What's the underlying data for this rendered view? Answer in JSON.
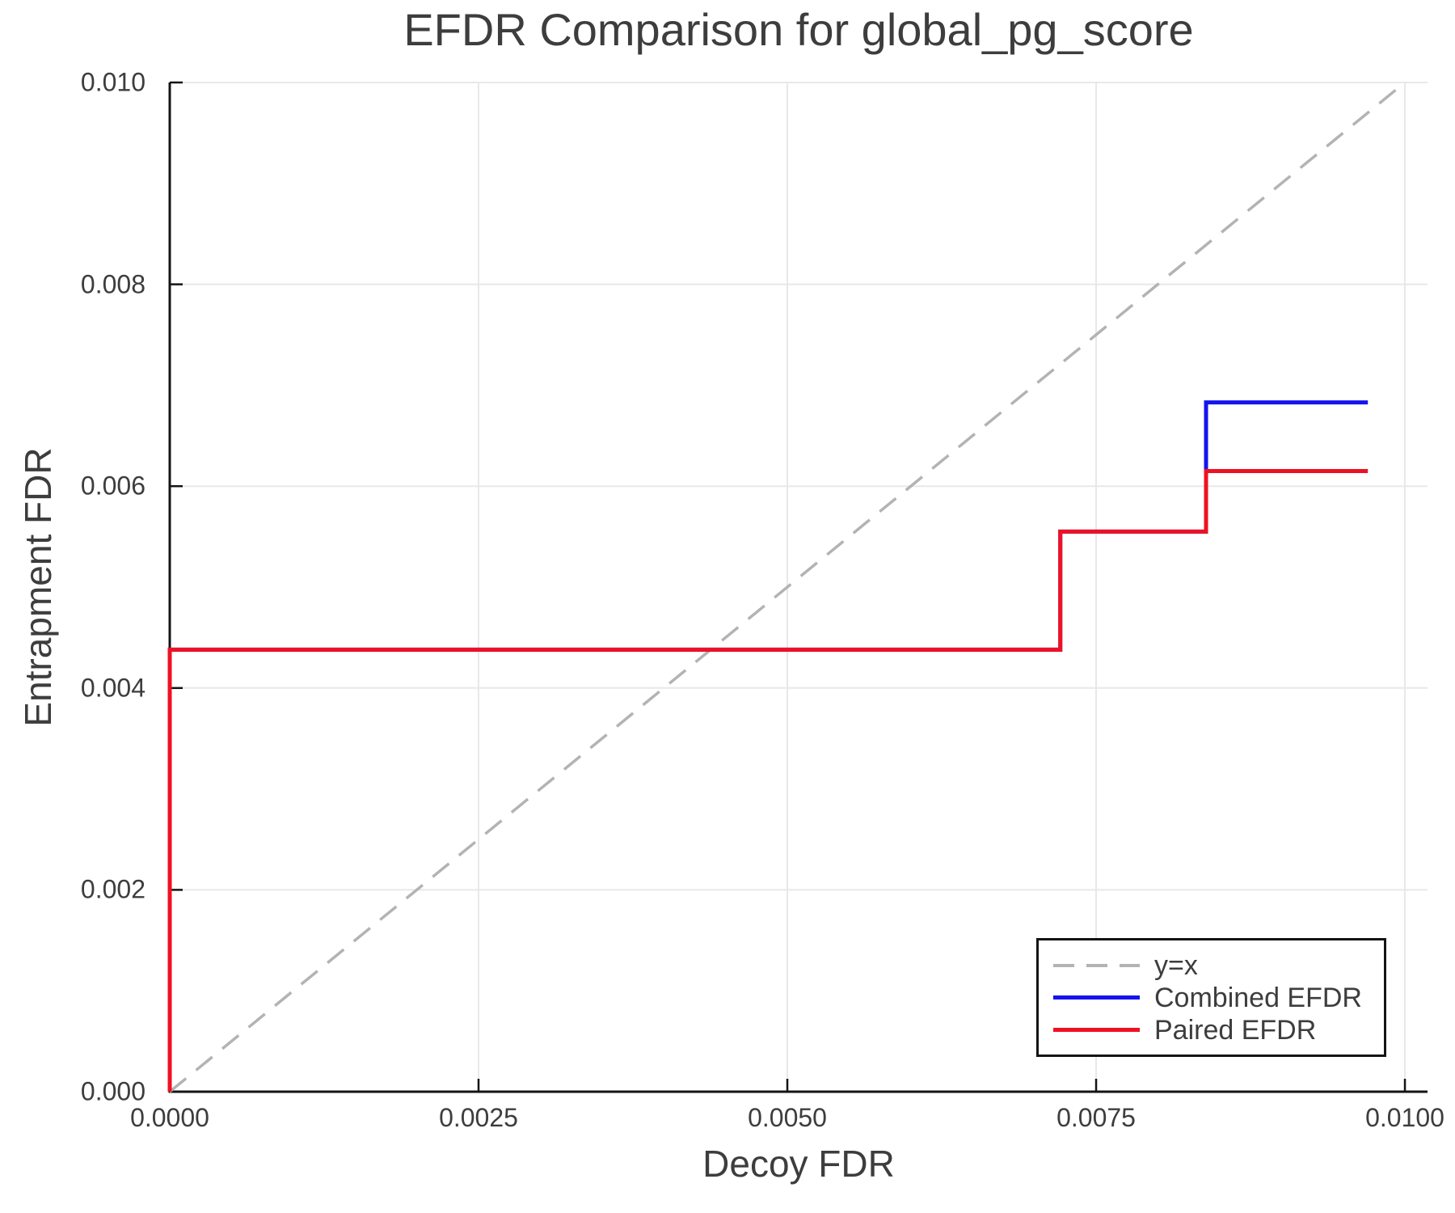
{
  "title": "EFDR Comparison for global_pg_score",
  "colors": {
    "background": "#ffffff",
    "text": "#3d3d3d",
    "grid": "#e8e8e8",
    "spine": "#141414",
    "identity_line": "#b3b3b3",
    "combined_efdr": "#1414ee",
    "paired_efdr": "#ee1122"
  },
  "chart_data": {
    "type": "line",
    "title": "EFDR Comparison for global_pg_score",
    "xlabel": "Decoy FDR",
    "ylabel": "Entrapment FDR",
    "xlim": [
      0,
      0.010183
    ],
    "ylim": [
      0,
      0.01
    ],
    "grid": true,
    "legend_position": "lower right",
    "x_ticks": {
      "values": [
        0,
        0.0025,
        0.005,
        0.0075,
        0.01
      ],
      "labels": [
        "0.0000",
        "0.0025",
        "0.0050",
        "0.0075",
        "0.0100"
      ]
    },
    "y_ticks": {
      "values": [
        0,
        0.002,
        0.004,
        0.006,
        0.008,
        0.01
      ],
      "labels": [
        "0.000",
        "0.002",
        "0.004",
        "0.006",
        "0.008",
        "0.010"
      ]
    },
    "series": [
      {
        "name": "y=x",
        "style": "dashed",
        "color": "#b3b3b3",
        "width": 3.5,
        "points": [
          [
            0,
            0
          ],
          [
            0.01,
            0.01
          ]
        ]
      },
      {
        "name": "Combined EFDR",
        "style": "solid",
        "color": "#1414ee",
        "width": 5,
        "points": [
          [
            0,
            0
          ],
          [
            0,
            0.00438
          ],
          [
            0.00721,
            0.00438
          ],
          [
            0.00721,
            0.00555
          ],
          [
            0.00839,
            0.00555
          ],
          [
            0.00839,
            0.00683
          ],
          [
            0.0097,
            0.00683
          ]
        ]
      },
      {
        "name": "Paired EFDR",
        "style": "solid",
        "color": "#ee1122",
        "width": 5,
        "points": [
          [
            0,
            0
          ],
          [
            0,
            0.00438
          ],
          [
            0.00721,
            0.00438
          ],
          [
            0.00721,
            0.00555
          ],
          [
            0.00839,
            0.00555
          ],
          [
            0.00839,
            0.00615
          ],
          [
            0.0097,
            0.00615
          ]
        ]
      }
    ]
  }
}
